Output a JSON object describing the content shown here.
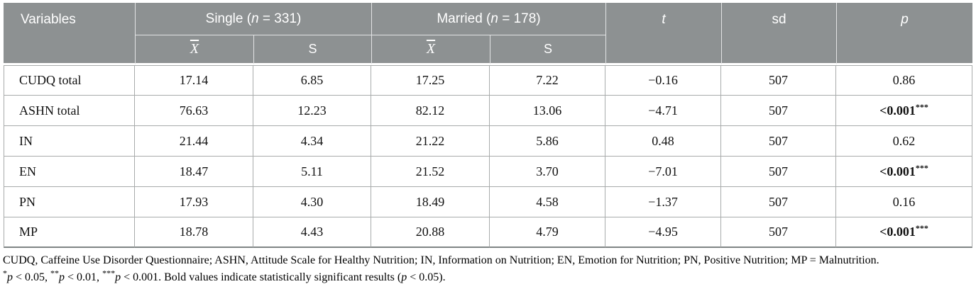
{
  "colors": {
    "header_bg": "#8d9192",
    "body_border": "#a8abab",
    "bottom_rule": "#7f8485"
  },
  "table": {
    "header": {
      "variables": "Variables",
      "single_prefix": "Single (",
      "married_prefix": "Married (",
      "n_symbol": "n",
      "single_suffix": " = 331)",
      "married_suffix": " = 178)",
      "mean_symbol": "X",
      "s_symbol": "S",
      "t": "t",
      "sd": "sd",
      "p": "p"
    },
    "rows": [
      {
        "variable": "CUDQ total",
        "single_mean": "17.14",
        "single_s": "6.85",
        "married_mean": "17.25",
        "married_s": "7.22",
        "t": "−0.16",
        "sd": "507",
        "p": "0.86",
        "p_sup": "",
        "p_bold": false
      },
      {
        "variable": "ASHN total",
        "single_mean": "76.63",
        "single_s": "12.23",
        "married_mean": "82.12",
        "married_s": "13.06",
        "t": "−4.71",
        "sd": "507",
        "p": "<0.001",
        "p_sup": "***",
        "p_bold": true
      },
      {
        "variable": "IN",
        "single_mean": "21.44",
        "single_s": "4.34",
        "married_mean": "21.22",
        "married_s": "5.86",
        "t": "0.48",
        "sd": "507",
        "p": "0.62",
        "p_sup": "",
        "p_bold": false
      },
      {
        "variable": "EN",
        "single_mean": "18.47",
        "single_s": "5.11",
        "married_mean": "21.52",
        "married_s": "3.70",
        "t": "−7.01",
        "sd": "507",
        "p": "<0.001",
        "p_sup": "***",
        "p_bold": true
      },
      {
        "variable": "PN",
        "single_mean": "17.93",
        "single_s": "4.30",
        "married_mean": "18.49",
        "married_s": "4.58",
        "t": "−1.37",
        "sd": "507",
        "p": "0.16",
        "p_sup": "",
        "p_bold": false
      },
      {
        "variable": "MP",
        "single_mean": "18.78",
        "single_s": "4.43",
        "married_mean": "20.88",
        "married_s": "4.79",
        "t": "−4.95",
        "sd": "507",
        "p": "<0.001",
        "p_sup": "***",
        "p_bold": true
      }
    ]
  },
  "footnotes": {
    "line1": "CUDQ, Caffeine Use Disorder Questionnaire; ASHN, Attitude Scale for Healthy Nutrition; IN, Information on Nutrition; EN, Emotion for Nutrition; PN, Positive Nutrition; MP = Malnutrition.",
    "line2_segments": [
      {
        "t": "*",
        "style": "sup"
      },
      {
        "t": "p",
        "style": "i"
      },
      {
        "t": " < 0.05, ",
        "style": ""
      },
      {
        "t": "**",
        "style": "sup"
      },
      {
        "t": "p",
        "style": "i"
      },
      {
        "t": " < 0.01, ",
        "style": ""
      },
      {
        "t": "***",
        "style": "sup"
      },
      {
        "t": "p",
        "style": "i"
      },
      {
        "t": " < 0.001. Bold values indicate statistically significant results (",
        "style": ""
      },
      {
        "t": "p",
        "style": "i"
      },
      {
        "t": " < 0.05).",
        "style": ""
      }
    ]
  }
}
